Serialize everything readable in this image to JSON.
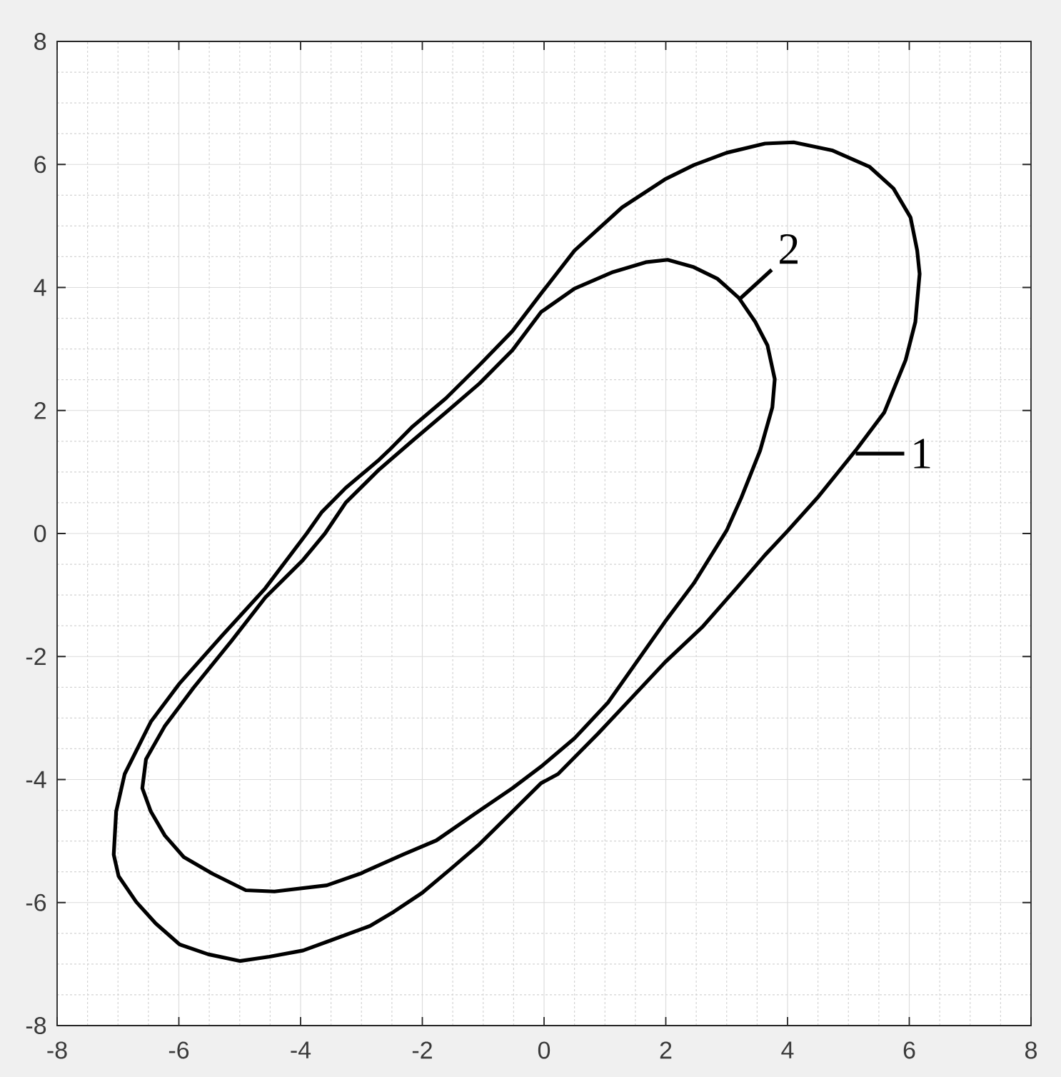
{
  "chart_data": {
    "type": "line",
    "series": [
      {
        "color": "#000000",
        "x": [
          -7.07,
          -7.03,
          -6.89,
          -6.46,
          -5.99,
          -5.29,
          -4.58,
          -3.9,
          -3.65,
          -3.26,
          -2.71,
          -2.55,
          -2.16,
          -1.61,
          -1.06,
          -0.52,
          -0.05,
          0.5,
          1.28,
          1.99,
          2.46,
          3.0,
          3.63,
          4.1,
          4.73,
          5.35,
          5.74,
          6.02,
          6.13,
          6.17,
          6.1,
          5.94,
          5.59,
          5.12,
          4.49,
          4.0,
          3.63,
          3.16,
          2.61,
          1.99,
          1.44,
          0.89,
          0.23,
          -0.05,
          -0.52,
          -1.06,
          -1.53,
          -2.0,
          -2.47,
          -2.86,
          -3.49,
          -3.96,
          -4.51,
          -5.0,
          -5.52,
          -5.99,
          -6.38,
          -6.7,
          -6.99,
          -7.07,
          -7.05
        ],
        "values": [
          -5.22,
          -4.52,
          -3.91,
          -3.06,
          -2.44,
          -1.66,
          -0.89,
          0.0,
          0.35,
          0.74,
          1.2,
          1.35,
          1.74,
          2.2,
          2.74,
          3.29,
          3.9,
          4.6,
          5.3,
          5.76,
          5.99,
          6.19,
          6.34,
          6.36,
          6.23,
          5.96,
          5.61,
          5.14,
          4.6,
          4.22,
          3.44,
          2.82,
          1.97,
          1.35,
          0.58,
          0.04,
          -0.35,
          -0.89,
          -1.51,
          -2.09,
          -2.67,
          -3.25,
          -3.91,
          -4.06,
          -4.52,
          -5.05,
          -5.45,
          -5.84,
          -6.15,
          -6.38,
          -6.61,
          -6.78,
          -6.88,
          -6.95,
          -6.84,
          -6.68,
          -6.34,
          -5.99,
          -5.57,
          -5.22,
          -4.87
        ]
      },
      {
        "color": "#000000",
        "x": [
          -6.6,
          -6.54,
          -6.23,
          -5.76,
          -5.13,
          -4.58,
          -3.96,
          -3.6,
          -3.26,
          -2.71,
          -2.16,
          -1.61,
          -1.06,
          -0.52,
          -0.05,
          0.5,
          1.13,
          1.67,
          2.03,
          2.46,
          2.85,
          3.2,
          3.47,
          3.67,
          3.79,
          3.75,
          3.55,
          3.24,
          3.0,
          2.85,
          2.46,
          1.99,
          1.52,
          1.05,
          0.5,
          -0.05,
          -0.52,
          -1.14,
          -1.77,
          -2.32,
          -3.02,
          -3.57,
          -4.43,
          -4.9,
          -5.45,
          -5.92,
          -6.23,
          -6.46,
          -6.6,
          -6.57
        ],
        "values": [
          -4.14,
          -3.67,
          -3.13,
          -2.51,
          -1.74,
          -1.04,
          -0.43,
          0.0,
          0.5,
          1.04,
          1.51,
          1.97,
          2.44,
          2.98,
          3.6,
          3.98,
          4.25,
          4.41,
          4.45,
          4.33,
          4.14,
          3.83,
          3.44,
          3.06,
          2.51,
          2.05,
          1.35,
          0.58,
          0.05,
          -0.19,
          -0.81,
          -1.43,
          -2.09,
          -2.75,
          -3.33,
          -3.79,
          -4.14,
          -4.56,
          -4.99,
          -5.22,
          -5.53,
          -5.72,
          -5.82,
          -5.8,
          -5.53,
          -5.26,
          -4.91,
          -4.52,
          -4.14,
          -3.9
        ]
      }
    ],
    "xlim": [
      -8,
      8
    ],
    "ylim": [
      -8,
      8
    ],
    "xticks": [
      -8,
      -6,
      -4,
      -2,
      0,
      2,
      4,
      6,
      8
    ],
    "yticks": [
      -8,
      -6,
      -4,
      -2,
      0,
      2,
      4,
      6,
      8
    ],
    "grid": true,
    "annotations": [
      {
        "text": "1",
        "x": 5.12,
        "y": 1.3
      },
      {
        "text": "2",
        "x": 3.2,
        "y": 3.8
      }
    ]
  }
}
